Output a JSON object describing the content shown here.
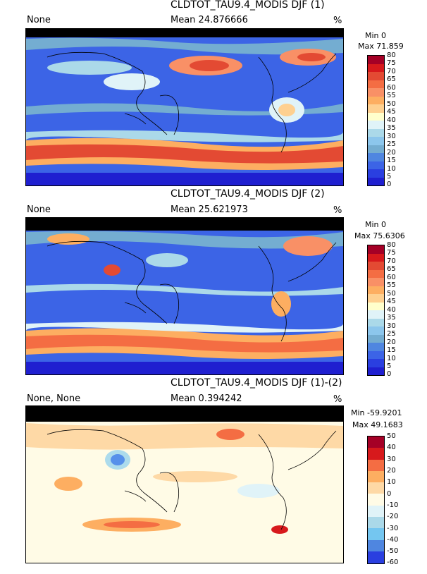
{
  "panels": [
    {
      "title": "CLDTOT_TAU9.4_MODIS DJF (1)",
      "left_label": "None",
      "mean": "Mean 24.876666",
      "unit": "%",
      "min": "Min 0",
      "max": "Max 71.859",
      "ticks": [
        "80",
        "75",
        "70",
        "65",
        "60",
        "55",
        "50",
        "45",
        "40",
        "35",
        "30",
        "25",
        "20",
        "15",
        "10",
        "5",
        "0"
      ],
      "colors": [
        "#a50026",
        "#d7191c",
        "#e34a33",
        "#f46d43",
        "#f99066",
        "#fdae61",
        "#fed090",
        "#ffffcc",
        "#e0f3f8",
        "#abd9e9",
        "#8cc6ec",
        "#74add1",
        "#4f86e0",
        "#3c64e6",
        "#2a3fe0",
        "#1f1fd0"
      ]
    },
    {
      "title": "CLDTOT_TAU9.4_MODIS DJF (2)",
      "left_label": "None",
      "mean": "Mean 25.621973",
      "unit": "%",
      "min": "Min 0",
      "max": "Max 75.6306",
      "ticks": [
        "80",
        "75",
        "70",
        "65",
        "60",
        "55",
        "50",
        "45",
        "40",
        "35",
        "30",
        "25",
        "20",
        "15",
        "10",
        "5",
        "0"
      ],
      "colors": [
        "#a50026",
        "#d7191c",
        "#e34a33",
        "#f46d43",
        "#f99066",
        "#fdae61",
        "#fed090",
        "#ffffcc",
        "#e0f3f8",
        "#abd9e9",
        "#8cc6ec",
        "#74add1",
        "#4f86e0",
        "#3c64e6",
        "#2a3fe0",
        "#1f1fd0"
      ]
    },
    {
      "title": "CLDTOT_TAU9.4_MODIS DJF (1)-(2)",
      "left_label": "None, None",
      "mean": "Mean 0.394242",
      "unit": "%",
      "min": "Min -59.9201",
      "max": "Max 49.1683",
      "ticks": [
        "50",
        "40",
        "30",
        "20",
        "10",
        "0",
        "-10",
        "-20",
        "-30",
        "-40",
        "-50",
        "-60"
      ],
      "colors": [
        "#a50026",
        "#d7191c",
        "#f46d43",
        "#fdae61",
        "#fed9a6",
        "#fffbe6",
        "#e0f3f8",
        "#abd9e9",
        "#74c6f0",
        "#4f86e0",
        "#2a3fe0"
      ]
    }
  ]
}
